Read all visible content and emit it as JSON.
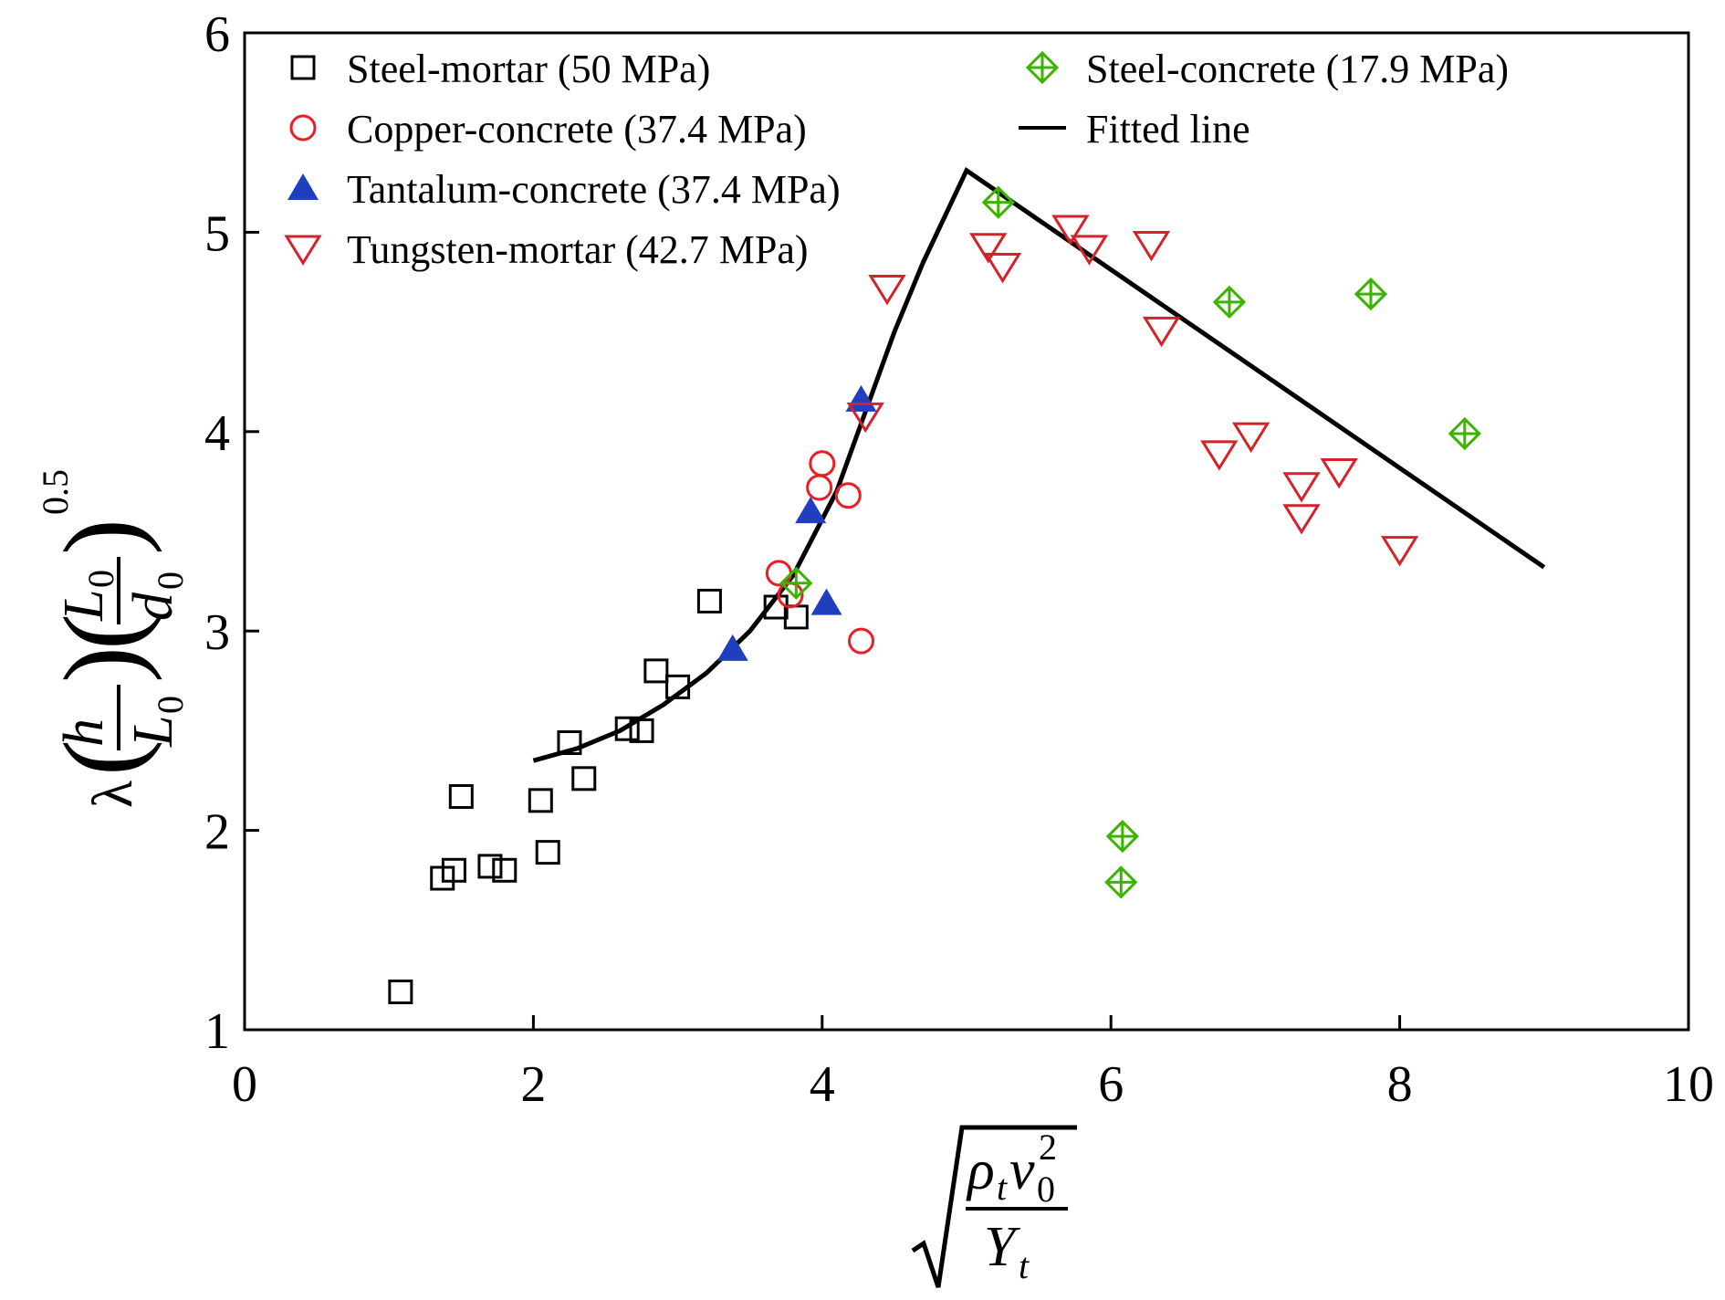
{
  "chart_data": {
    "type": "scatter",
    "xlim": [
      0,
      10
    ],
    "ylim": [
      1,
      6
    ],
    "x_ticks": [
      0,
      2,
      4,
      6,
      8,
      10
    ],
    "y_ticks": [
      1,
      2,
      3,
      4,
      5,
      6
    ],
    "grid": false,
    "legend_position": "top",
    "colors": {
      "axis": "#000000",
      "steel_mortar": "#000000",
      "copper_concrete": "#ee1c25",
      "tantalum_concrete": "#1f3fbf",
      "tungsten_mortar": "#d3222a",
      "steel_concrete": "#3bb400",
      "fitted_line": "#000000"
    },
    "series": [
      {
        "name": "Steel-mortar (50 MPa)",
        "marker": "square-open",
        "points": [
          [
            1.08,
            1.19
          ],
          [
            1.37,
            1.76
          ],
          [
            1.45,
            1.8
          ],
          [
            1.5,
            2.17
          ],
          [
            1.7,
            1.82
          ],
          [
            1.8,
            1.8
          ],
          [
            2.05,
            2.15
          ],
          [
            2.1,
            1.89
          ],
          [
            2.25,
            2.44
          ],
          [
            2.35,
            2.26
          ],
          [
            2.65,
            2.51
          ],
          [
            2.75,
            2.5
          ],
          [
            2.85,
            2.8
          ],
          [
            3.0,
            2.72
          ],
          [
            3.22,
            3.15
          ],
          [
            3.68,
            3.12
          ],
          [
            3.82,
            3.07
          ]
        ]
      },
      {
        "name": "Copper-concrete (37.4 MPa)",
        "marker": "circle-open",
        "points": [
          [
            3.7,
            3.29
          ],
          [
            3.78,
            3.18
          ],
          [
            3.98,
            3.72
          ],
          [
            4.0,
            3.84
          ],
          [
            4.18,
            3.68
          ],
          [
            4.27,
            2.95
          ]
        ]
      },
      {
        "name": "Tantalum-concrete (37.4 MPa)",
        "marker": "triangle-up-filled",
        "points": [
          [
            3.38,
            2.91
          ],
          [
            3.92,
            3.6
          ],
          [
            4.03,
            3.14
          ],
          [
            4.27,
            4.16
          ]
        ]
      },
      {
        "name": "Tungsten-mortar (42.7 MPa)",
        "marker": "triangle-down-open",
        "points": [
          [
            4.3,
            4.08
          ],
          [
            4.45,
            4.72
          ],
          [
            5.15,
            4.93
          ],
          [
            5.25,
            4.83
          ],
          [
            5.72,
            5.02
          ],
          [
            5.85,
            4.92
          ],
          [
            6.28,
            4.94
          ],
          [
            6.35,
            4.51
          ],
          [
            6.75,
            3.89
          ],
          [
            6.97,
            3.98
          ],
          [
            7.32,
            3.73
          ],
          [
            7.32,
            3.57
          ],
          [
            7.58,
            3.8
          ],
          [
            8.0,
            3.41
          ]
        ]
      },
      {
        "name": "Steel-concrete (17.9 MPa)",
        "marker": "diamond-cross",
        "points": [
          [
            3.82,
            3.24
          ],
          [
            5.22,
            5.15
          ],
          [
            6.08,
            1.97
          ],
          [
            6.07,
            1.74
          ],
          [
            6.82,
            4.65
          ],
          [
            7.8,
            4.69
          ],
          [
            8.45,
            3.99
          ]
        ]
      },
      {
        "name": "Fitted line",
        "marker": "line",
        "points": [
          [
            2.0,
            2.35
          ],
          [
            2.3,
            2.41
          ],
          [
            2.6,
            2.5
          ],
          [
            2.9,
            2.63
          ],
          [
            3.2,
            2.79
          ],
          [
            3.5,
            3.0
          ],
          [
            3.8,
            3.28
          ],
          [
            4.1,
            3.7
          ],
          [
            4.3,
            4.1
          ],
          [
            4.5,
            4.5
          ],
          [
            4.7,
            4.85
          ],
          [
            5.0,
            5.31
          ],
          [
            9.0,
            3.32
          ]
        ]
      }
    ],
    "x_axis_label": {
      "radical": "√",
      "num_base": "ρ",
      "num_sub1": "t",
      "num_mid": "v",
      "num_sub2": "0",
      "num_sup": "2",
      "den_base": "Y",
      "den_sub": "t"
    },
    "y_axis_label": {
      "lambda": "λ",
      "h": "h",
      "L": "L",
      "sub0": "0",
      "d": "d",
      "exponent": "0.5"
    }
  }
}
